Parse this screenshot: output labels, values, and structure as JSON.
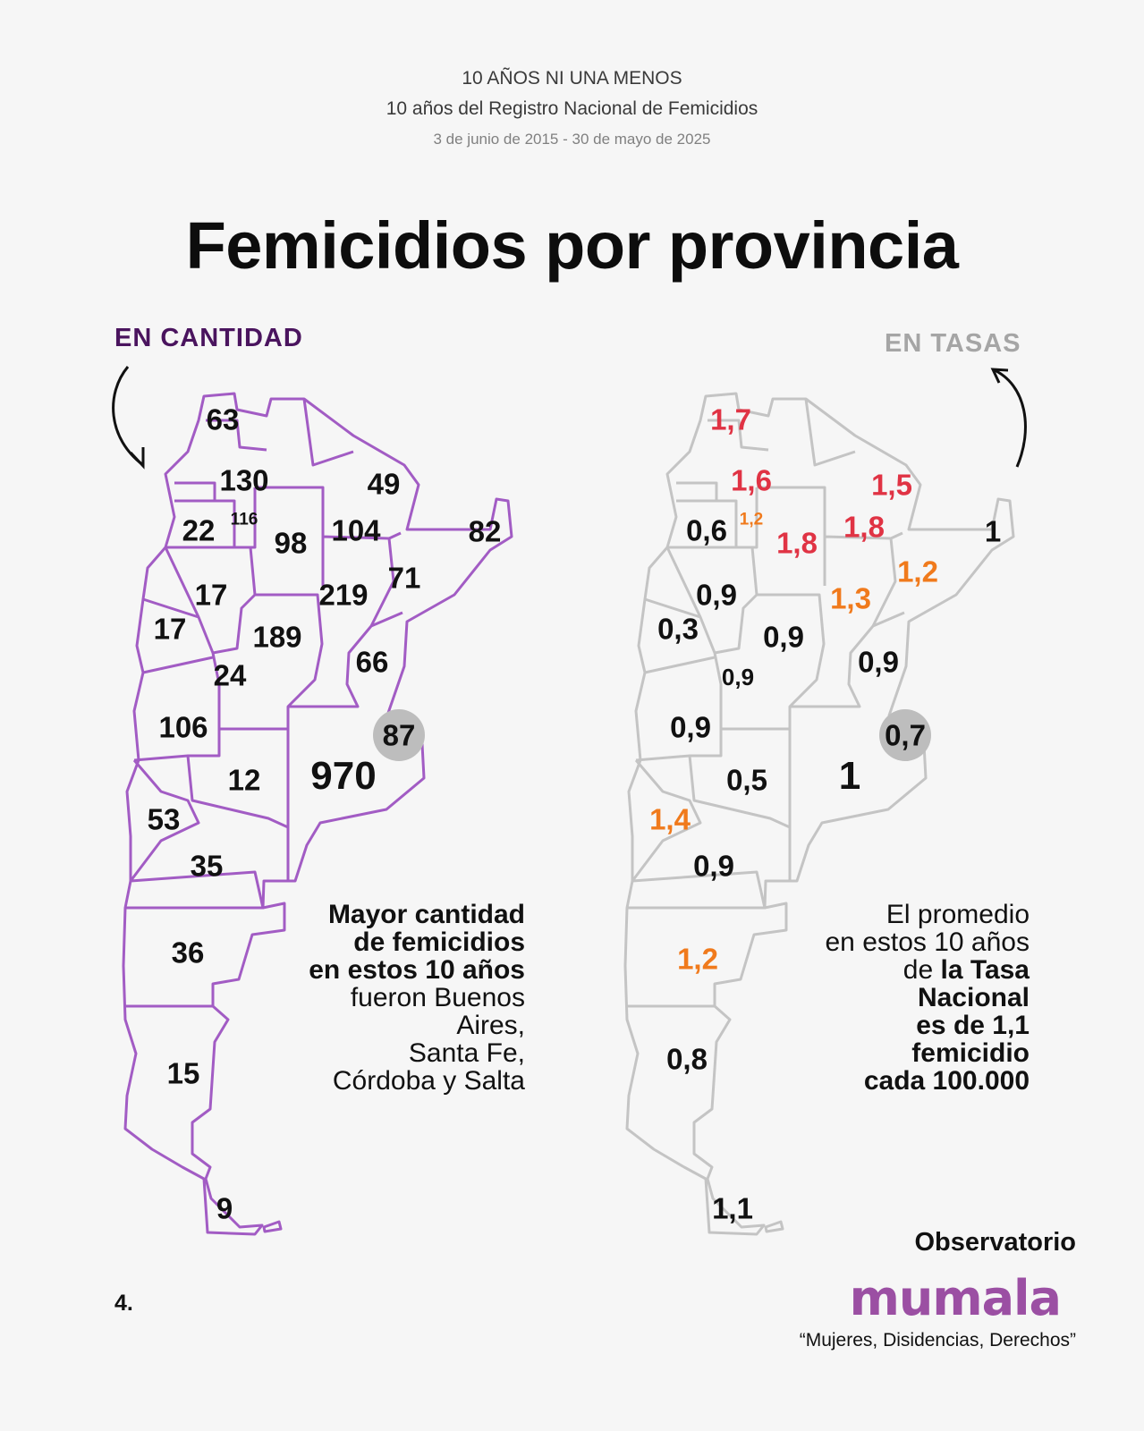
{
  "header": {
    "line1": "10 AÑOS NI UNA MENOS",
    "line2": "10 años del Registro Nacional de Femicidios",
    "line3": "3 de junio de 2015 - 30 de mayo de 2025"
  },
  "title": "Femicidios por provincia",
  "left": {
    "section_label": "EN CANTIDAD",
    "values": {
      "jujuy": "63",
      "salta": "130",
      "tucuman": "116",
      "catamarca": "22",
      "santiago": "98",
      "chaco": "104",
      "formosa": "49",
      "misiones": "82",
      "corrientes": "71",
      "santafe": "219",
      "larioja": "17",
      "sanjuan": "17",
      "cordoba": "189",
      "sanluis": "24",
      "entrerios": "66",
      "mendoza": "106",
      "caba": "87",
      "buenosaires": "970",
      "lapampa": "12",
      "neuquen": "53",
      "rionegro": "35",
      "chubut": "36",
      "santacruz": "15",
      "tierradelfuego": "9"
    },
    "note": {
      "bold1": "Mayor cantidad",
      "bold2": "de femicidios",
      "bold3": "en estos 10 años",
      "line4": "fueron Buenos",
      "line5": "Aires,",
      "line6": "Santa Fe,",
      "line7": "Córdoba y Salta"
    },
    "map_color": "#a25cc4"
  },
  "right": {
    "section_label": "EN TASAS",
    "values": {
      "jujuy": "1,7",
      "salta": "1,6",
      "tucuman": "1,2",
      "catamarca": "0,6",
      "santiago": "1,8",
      "chaco": "1,8",
      "formosa": "1,5",
      "misiones": "1",
      "corrientes": "1,2",
      "santafe": "1,3",
      "larioja": "0,9",
      "sanjuan": "0,3",
      "cordoba": "0,9",
      "sanluis": "0,9",
      "entrerios": "0,9",
      "mendoza": "0,9",
      "caba": "0,7",
      "buenosaires": "1",
      "lapampa": "0,5",
      "neuquen": "1,4",
      "rionegro": "0,9",
      "chubut": "1,2",
      "santacruz": "0,8",
      "tierradelfuego": "1,1"
    },
    "note": {
      "line1": "El promedio",
      "line2": "en estos 10 años",
      "line3": "de ",
      "bold3": "la Tasa",
      "bold4": "Nacional",
      "bold5": "es de 1,1",
      "bold6": "femicidio",
      "bold7": "cada 100.000"
    },
    "map_color": "#c4c4c4",
    "high_color": "#e03344",
    "mid_color": "#f07a1c"
  },
  "footer": {
    "page_number": "4.",
    "observatory": "Observatorio",
    "logo": "mumala",
    "tagline": "“Mujeres, Disidencias, Derechos”"
  }
}
